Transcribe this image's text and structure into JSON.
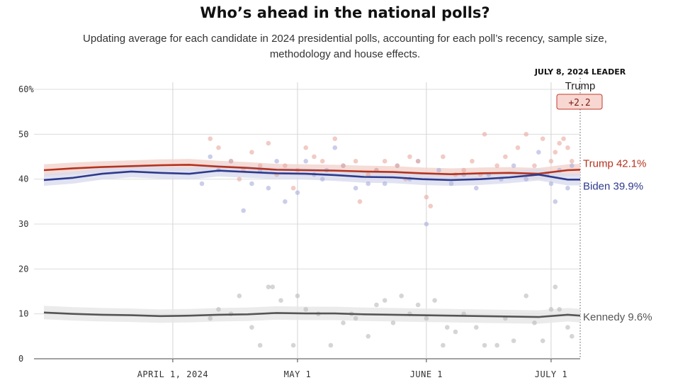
{
  "title": "Who’s ahead in the national polls?",
  "subtitle": "Updating average for each candidate in 2024 presidential polls, accounting for each poll’s recency, sample size, methodology and house effects.",
  "leader": {
    "heading": "JULY 8, 2024 LEADER",
    "name": "Trump",
    "margin": "+2.2"
  },
  "colors": {
    "trump": "#b5331f",
    "biden": "#2d3a8c",
    "kennedy": "#555555",
    "trump_band": "#f3d3cd",
    "biden_band": "#d9dcef",
    "kennedy_band": "#e6e6e6",
    "trump_dot": "#e8a89d",
    "biden_dot": "#a9aedb",
    "kennedy_dot": "#b9b9b9",
    "leader_box_fill": "#f8d7d2",
    "leader_box_stroke": "#c0392b"
  },
  "chart_data": {
    "type": "line",
    "ylim": [
      0,
      60
    ],
    "ytick_labels": [
      "0",
      "10",
      "20",
      "30",
      "40",
      "50",
      "60%"
    ],
    "xlim": [
      "2024-03-01",
      "2024-07-08"
    ],
    "xtick_labels": [
      "APRIL 1, 2024",
      "MAY 1",
      "JUNE 1",
      "JULY 1"
    ],
    "x_ticks": [
      "2024-04-01",
      "2024-05-01",
      "2024-06-01",
      "2024-07-01"
    ],
    "x": [
      "2024-03-01",
      "2024-03-08",
      "2024-03-15",
      "2024-03-22",
      "2024-03-29",
      "2024-04-05",
      "2024-04-12",
      "2024-04-19",
      "2024-04-26",
      "2024-05-03",
      "2024-05-10",
      "2024-05-17",
      "2024-05-24",
      "2024-05-31",
      "2024-06-07",
      "2024-06-14",
      "2024-06-21",
      "2024-06-28",
      "2024-07-05",
      "2024-07-08"
    ],
    "series": [
      {
        "name": "Trump",
        "end_label": "Trump 42.1%",
        "band": 1.3,
        "values": [
          42.0,
          42.4,
          42.7,
          42.9,
          43.1,
          43.2,
          42.8,
          42.5,
          42.1,
          42.0,
          41.9,
          41.7,
          41.6,
          41.3,
          41.1,
          41.3,
          41.4,
          41.2,
          42.0,
          42.1
        ]
      },
      {
        "name": "Biden",
        "end_label": "Biden 39.9%",
        "band": 1.3,
        "values": [
          39.8,
          40.3,
          41.2,
          41.7,
          41.4,
          41.2,
          41.9,
          41.6,
          41.3,
          41.2,
          40.9,
          40.5,
          40.4,
          40.0,
          39.8,
          40.0,
          40.4,
          41.0,
          39.9,
          39.9
        ]
      },
      {
        "name": "Kennedy",
        "end_label": "Kennedy 9.6%",
        "band": 1.5,
        "values": [
          10.3,
          10.0,
          9.8,
          9.7,
          9.5,
          9.6,
          9.8,
          9.9,
          10.2,
          10.1,
          10.1,
          9.9,
          9.8,
          9.7,
          9.6,
          9.5,
          9.4,
          9.3,
          9.8,
          9.6
        ]
      }
    ],
    "polls": {
      "trump": [
        [
          "2024-04-10",
          49
        ],
        [
          "2024-04-12",
          47
        ],
        [
          "2024-04-15",
          44
        ],
        [
          "2024-04-18",
          42
        ],
        [
          "2024-04-20",
          46
        ],
        [
          "2024-04-22",
          43
        ],
        [
          "2024-04-24",
          48
        ],
        [
          "2024-04-26",
          41
        ],
        [
          "2024-04-28",
          43
        ],
        [
          "2024-05-01",
          42
        ],
        [
          "2024-05-03",
          47
        ],
        [
          "2024-05-05",
          45
        ],
        [
          "2024-05-07",
          44
        ],
        [
          "2024-05-10",
          49
        ],
        [
          "2024-05-12",
          43
        ],
        [
          "2024-05-15",
          44
        ],
        [
          "2024-05-18",
          41
        ],
        [
          "2024-05-20",
          42
        ],
        [
          "2024-05-22",
          44
        ],
        [
          "2024-05-25",
          43
        ],
        [
          "2024-05-28",
          45
        ],
        [
          "2024-05-30",
          44
        ],
        [
          "2024-06-02",
          34
        ],
        [
          "2024-06-05",
          45
        ],
        [
          "2024-06-08",
          41
        ],
        [
          "2024-06-10",
          42
        ],
        [
          "2024-06-12",
          44
        ],
        [
          "2024-06-15",
          50
        ],
        [
          "2024-06-18",
          43
        ],
        [
          "2024-06-20",
          45
        ],
        [
          "2024-06-23",
          47
        ],
        [
          "2024-06-25",
          50
        ],
        [
          "2024-06-27",
          43
        ],
        [
          "2024-06-29",
          49
        ],
        [
          "2024-07-01",
          44
        ],
        [
          "2024-07-02",
          46
        ],
        [
          "2024-07-03",
          48
        ],
        [
          "2024-07-04",
          49
        ],
        [
          "2024-07-05",
          47
        ],
        [
          "2024-07-06",
          44
        ],
        [
          "2024-04-30",
          38
        ],
        [
          "2024-05-16",
          35
        ],
        [
          "2024-06-01",
          36
        ],
        [
          "2024-06-14",
          41
        ],
        [
          "2024-04-17",
          40
        ],
        [
          "2024-05-27",
          40
        ]
      ],
      "biden": [
        [
          "2024-04-10",
          45
        ],
        [
          "2024-04-12",
          42
        ],
        [
          "2024-04-15",
          44
        ],
        [
          "2024-04-18",
          33
        ],
        [
          "2024-04-20",
          39
        ],
        [
          "2024-04-22",
          42
        ],
        [
          "2024-04-24",
          38
        ],
        [
          "2024-04-26",
          44
        ],
        [
          "2024-04-28",
          35
        ],
        [
          "2024-05-01",
          37
        ],
        [
          "2024-05-03",
          44
        ],
        [
          "2024-05-05",
          41
        ],
        [
          "2024-05-07",
          40
        ],
        [
          "2024-05-10",
          47
        ],
        [
          "2024-05-12",
          43
        ],
        [
          "2024-05-15",
          38
        ],
        [
          "2024-05-18",
          39
        ],
        [
          "2024-05-20",
          42
        ],
        [
          "2024-05-22",
          39
        ],
        [
          "2024-05-25",
          43
        ],
        [
          "2024-05-28",
          40
        ],
        [
          "2024-05-30",
          44
        ],
        [
          "2024-06-01",
          30
        ],
        [
          "2024-06-04",
          42
        ],
        [
          "2024-06-07",
          39
        ],
        [
          "2024-06-10",
          41
        ],
        [
          "2024-06-13",
          38
        ],
        [
          "2024-06-16",
          41
        ],
        [
          "2024-06-19",
          40
        ],
        [
          "2024-06-22",
          43
        ],
        [
          "2024-06-25",
          40
        ],
        [
          "2024-06-28",
          46
        ],
        [
          "2024-06-30",
          41
        ],
        [
          "2024-07-01",
          39
        ],
        [
          "2024-07-02",
          35
        ],
        [
          "2024-07-03",
          42
        ],
        [
          "2024-07-05",
          38
        ],
        [
          "2024-07-06",
          43
        ],
        [
          "2024-04-08",
          39
        ],
        [
          "2024-05-08",
          42
        ]
      ],
      "kennedy": [
        [
          "2024-04-10",
          9
        ],
        [
          "2024-04-12",
          11
        ],
        [
          "2024-04-15",
          10
        ],
        [
          "2024-04-17",
          14
        ],
        [
          "2024-04-20",
          7
        ],
        [
          "2024-04-22",
          3
        ],
        [
          "2024-04-24",
          16
        ],
        [
          "2024-04-25",
          16
        ],
        [
          "2024-04-27",
          13
        ],
        [
          "2024-04-30",
          3
        ],
        [
          "2024-05-01",
          14
        ],
        [
          "2024-05-03",
          11
        ],
        [
          "2024-05-06",
          10
        ],
        [
          "2024-05-09",
          3
        ],
        [
          "2024-05-12",
          8
        ],
        [
          "2024-05-15",
          9
        ],
        [
          "2024-05-18",
          5
        ],
        [
          "2024-05-20",
          12
        ],
        [
          "2024-05-22",
          13
        ],
        [
          "2024-05-24",
          8
        ],
        [
          "2024-05-26",
          14
        ],
        [
          "2024-05-28",
          10
        ],
        [
          "2024-05-30",
          12
        ],
        [
          "2024-06-01",
          9
        ],
        [
          "2024-06-03",
          13
        ],
        [
          "2024-06-05",
          3
        ],
        [
          "2024-06-08",
          6
        ],
        [
          "2024-06-10",
          10
        ],
        [
          "2024-06-13",
          7
        ],
        [
          "2024-06-15",
          3
        ],
        [
          "2024-06-18",
          3
        ],
        [
          "2024-06-20",
          9
        ],
        [
          "2024-06-22",
          4
        ],
        [
          "2024-06-25",
          14
        ],
        [
          "2024-06-27",
          8
        ],
        [
          "2024-06-29",
          4
        ],
        [
          "2024-07-01",
          11
        ],
        [
          "2024-07-02",
          16
        ],
        [
          "2024-07-03",
          11
        ],
        [
          "2024-07-05",
          7
        ],
        [
          "2024-07-06",
          5
        ],
        [
          "2024-05-14",
          10
        ],
        [
          "2024-06-06",
          7
        ]
      ]
    }
  }
}
